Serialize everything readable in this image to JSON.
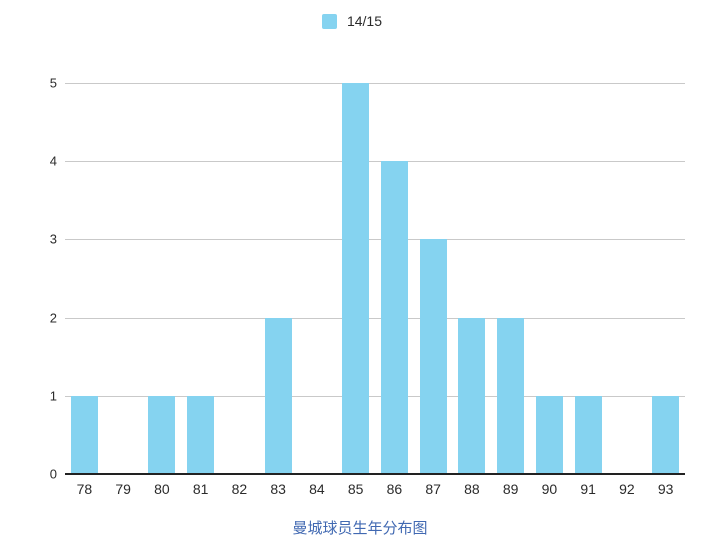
{
  "chart_data": {
    "type": "bar",
    "title": "曼城球员生年分布图",
    "categories": [
      "78",
      "79",
      "80",
      "81",
      "82",
      "83",
      "84",
      "85",
      "86",
      "87",
      "88",
      "89",
      "90",
      "91",
      "92",
      "93"
    ],
    "series": [
      {
        "name": "14/15",
        "values": [
          1,
          0,
          1,
          1,
          0,
          2,
          0,
          5,
          4,
          3,
          2,
          2,
          1,
          1,
          0,
          1
        ],
        "color": "#85d3f0"
      }
    ],
    "xlabel": "",
    "ylabel": "",
    "ylim": [
      0,
      5
    ],
    "yticks": [
      0,
      1,
      2,
      3,
      4,
      5
    ],
    "grid": true,
    "legend_position": "top-center"
  },
  "colors": {
    "bar": "#85d3f0",
    "title_text": "#4169b2",
    "gridline": "#c9c9c9",
    "axis_line": "#222222",
    "tick_text": "#2b2b2b"
  }
}
